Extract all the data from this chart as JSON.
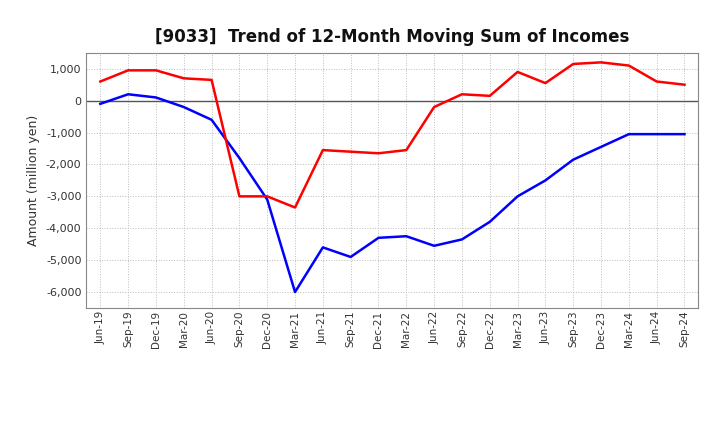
{
  "title": "[9033]  Trend of 12-Month Moving Sum of Incomes",
  "ylabel": "Amount (million yen)",
  "ylim": [
    -6500,
    1500
  ],
  "yticks": [
    -6000,
    -5000,
    -4000,
    -3000,
    -2000,
    -1000,
    0,
    1000
  ],
  "background_color": "#ffffff",
  "grid_color": "#bbbbbb",
  "x_labels": [
    "Jun-19",
    "Sep-19",
    "Dec-19",
    "Mar-20",
    "Jun-20",
    "Sep-20",
    "Dec-20",
    "Mar-21",
    "Jun-21",
    "Sep-21",
    "Dec-21",
    "Mar-22",
    "Jun-22",
    "Sep-22",
    "Dec-22",
    "Mar-23",
    "Jun-23",
    "Sep-23",
    "Dec-23",
    "Mar-24",
    "Jun-24",
    "Sep-24"
  ],
  "ordinary_income": [
    -100,
    200,
    100,
    -200,
    -600,
    -1800,
    -3100,
    -6000,
    -4600,
    -4900,
    -4300,
    -4250,
    -4550,
    -4350,
    -3800,
    -3000,
    -2500,
    -1850,
    -1450,
    -1050,
    -1050,
    -1050
  ],
  "net_income": [
    600,
    950,
    950,
    700,
    650,
    -3000,
    -3000,
    -3350,
    -1550,
    -1600,
    -1650,
    -1550,
    -200,
    200,
    150,
    900,
    550,
    1150,
    1200,
    1100,
    600,
    500
  ],
  "ordinary_color": "#0000ff",
  "net_color": "#ff0000",
  "line_width": 1.8
}
